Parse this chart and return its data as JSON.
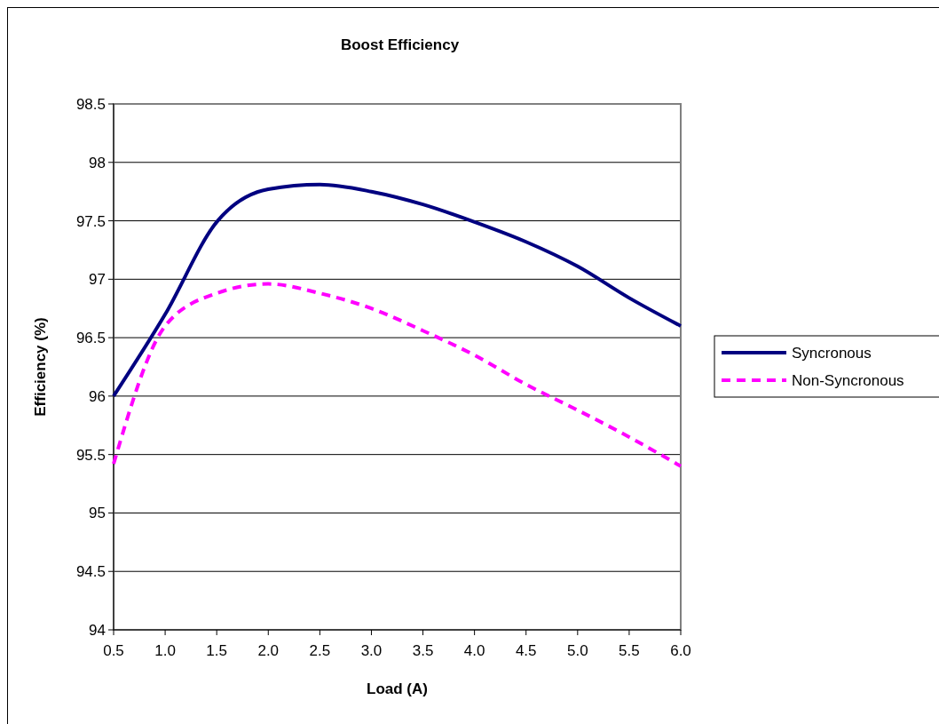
{
  "chart_data": {
    "type": "line",
    "title": "Boost Efficiency",
    "xlabel": "Load (A)",
    "ylabel": "Efficiency (%)",
    "x": [
      0.5,
      1.0,
      1.5,
      2.0,
      2.5,
      3.0,
      3.5,
      4.0,
      4.5,
      5.0,
      5.5,
      6.0
    ],
    "series": [
      {
        "name": "Syncronous",
        "color": "#000080",
        "line_style": "solid",
        "values": [
          96.0,
          96.7,
          97.49,
          97.77,
          97.81,
          97.75,
          97.64,
          97.49,
          97.32,
          97.11,
          96.84,
          96.6
        ]
      },
      {
        "name": "Non-Syncronous",
        "color": "#ff00ff",
        "line_style": "dashed",
        "values": [
          95.42,
          96.6,
          96.88,
          96.96,
          96.88,
          96.75,
          96.56,
          96.35,
          96.1,
          95.88,
          95.65,
          95.4
        ]
      }
    ],
    "xlim": [
      0.5,
      6.0
    ],
    "xticks": [
      0.5,
      {
        "value": 1,
        "label": "1.0"
      },
      1.5,
      {
        "value": 2,
        "label": "2.0"
      },
      2.5,
      {
        "value": 3,
        "label": "3.0"
      },
      3.5,
      {
        "value": 4,
        "label": "4.0"
      },
      4.5,
      {
        "value": 5,
        "label": "5.0"
      },
      5.5,
      {
        "value": 6,
        "label": "6.0"
      }
    ],
    "ylim": [
      94,
      98.5
    ],
    "yticks": [
      94,
      94.5,
      95,
      95.5,
      96,
      96.5,
      97,
      97.5,
      98,
      98.5
    ],
    "grid": "y",
    "legend": "right",
    "marker": "none"
  }
}
